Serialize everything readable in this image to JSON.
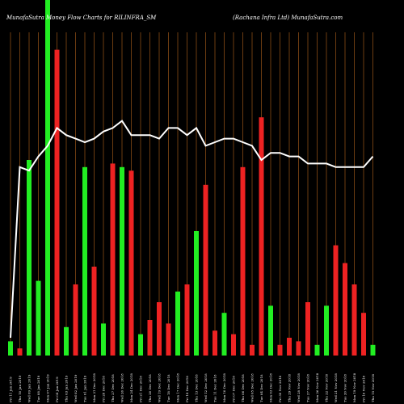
{
  "header": {
    "left_title": "MunafaSutra  Money  Flow  Charts for RILINFRA_SM",
    "right_title": "(Rachana  Infra  Ltd) MunafaSutra.com"
  },
  "colors": {
    "background": "#000000",
    "grid": "#b5651d",
    "up": "#22ee22",
    "down": "#ee2222",
    "line": "#ffffff"
  },
  "chart_data": {
    "type": "bar",
    "y_range": [
      0,
      100
    ],
    "bars": [
      {
        "label": "Fri 11 Jan 2019",
        "value": 4,
        "color": "green"
      },
      {
        "label": "Thu 10 Jan 2019",
        "value": 2,
        "color": "red"
      },
      {
        "label": "Wed 09 Jan 2019",
        "value": 55,
        "color": "green"
      },
      {
        "label": "Tue 08 Jan 2019",
        "value": 21,
        "color": "green"
      },
      {
        "label": "Mon 07 Jan 2019",
        "value": 100,
        "color": "green"
      },
      {
        "label": "Fri 04 Jan 2019",
        "value": 86,
        "color": "red"
      },
      {
        "label": "Thu 03 Jan 2019",
        "value": 8,
        "color": "green"
      },
      {
        "label": "Wed 02 Jan 2019",
        "value": 20,
        "color": "red"
      },
      {
        "label": "Tue 01 Jan 2019",
        "value": 53,
        "color": "green"
      },
      {
        "label": "Mon 31 Dec 2018",
        "value": 25,
        "color": "red"
      },
      {
        "label": "Fri 28 Dec 2018",
        "value": 9,
        "color": "green"
      },
      {
        "label": "Thu 27 Dec 2018",
        "value": 54,
        "color": "red"
      },
      {
        "label": "Wed 26 Dec 2018",
        "value": 53,
        "color": "green"
      },
      {
        "label": "Mon 24 Dec 2018",
        "value": 52,
        "color": "red"
      },
      {
        "label": "Fri 21 Dec 2018",
        "value": 6,
        "color": "green"
      },
      {
        "label": "Thu 20 Dec 2018",
        "value": 10,
        "color": "red"
      },
      {
        "label": "Wed 19 Dec 2018",
        "value": 15,
        "color": "red"
      },
      {
        "label": "Tue 18 Dec 2018",
        "value": 9,
        "color": "red"
      },
      {
        "label": "Mon 17 Dec 2018",
        "value": 18,
        "color": "green"
      },
      {
        "label": "Fri 14 Dec 2018",
        "value": 20,
        "color": "red"
      },
      {
        "label": "Thu 13 Dec 2018",
        "value": 35,
        "color": "green"
      },
      {
        "label": "Wed 12 Dec 2018",
        "value": 48,
        "color": "red"
      },
      {
        "label": "Tue 11 Dec 2018",
        "value": 7,
        "color": "red"
      },
      {
        "label": "Mon 10 Dec 2018",
        "value": 12,
        "color": "green"
      },
      {
        "label": "Fri 07 Dec 2018",
        "value": 6,
        "color": "red"
      },
      {
        "label": "Thu 06 Dec 2018",
        "value": 53,
        "color": "red"
      },
      {
        "label": "Wed 05 Dec 2018",
        "value": 3,
        "color": "red"
      },
      {
        "label": "Tue 04 Dec 2018",
        "value": 67,
        "color": "red"
      },
      {
        "label": "Mon 03 Dec 2018",
        "value": 14,
        "color": "green"
      },
      {
        "label": "Fri 30 Nov 2018",
        "value": 3,
        "color": "red"
      },
      {
        "label": "Thu 29 Nov 2018",
        "value": 5,
        "color": "red"
      },
      {
        "label": "Wed 28 Nov 2018",
        "value": 4,
        "color": "red"
      },
      {
        "label": "Tue 27 Nov 2018",
        "value": 15,
        "color": "red"
      },
      {
        "label": "Mon 26 Nov 2018",
        "value": 3,
        "color": "green"
      },
      {
        "label": "Thu 22 Nov 2018",
        "value": 14,
        "color": "green"
      },
      {
        "label": "Wed 21 Nov 2018",
        "value": 31,
        "color": "red"
      },
      {
        "label": "Tue 20 Nov 2018",
        "value": 26,
        "color": "red"
      },
      {
        "label": "Mon 19 Nov 2018",
        "value": 20,
        "color": "red"
      },
      {
        "label": "Fri 16 Nov 2018",
        "value": 12,
        "color": "red"
      },
      {
        "label": "Thu 15 Nov 2018",
        "value": 3,
        "color": "green"
      }
    ],
    "line": [
      5,
      53,
      52,
      56,
      59,
      64,
      62,
      61,
      60,
      61,
      63,
      64,
      66,
      62,
      62,
      62,
      61,
      64,
      64,
      62,
      64,
      59,
      60,
      61,
      61,
      60,
      59,
      55,
      57,
      57,
      56,
      56,
      54,
      54,
      54,
      53,
      53,
      53,
      53,
      56
    ],
    "grid": "vertical"
  }
}
